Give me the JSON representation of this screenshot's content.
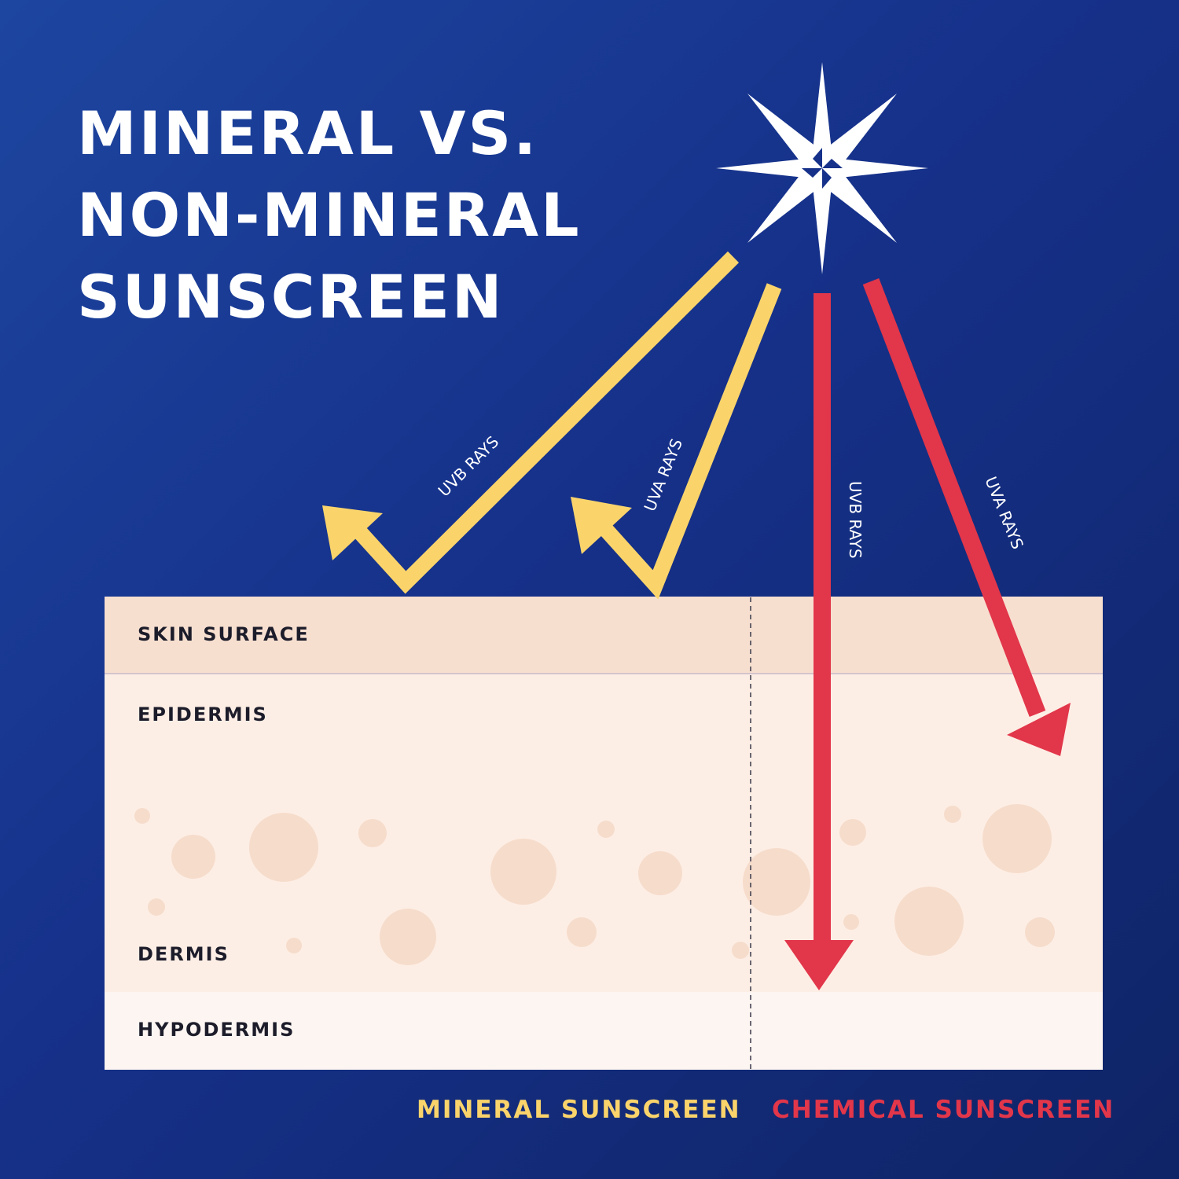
{
  "title": {
    "line1": "MINERAL VS.",
    "line2": "NON-MINERAL",
    "line3": "SUNSCREEN"
  },
  "rays": {
    "mineral_uvb": "UVB RAYS",
    "mineral_uva": "UVA RAYS",
    "chemical_uvb": "UVB RAYS",
    "chemical_uva": "UVA RAYS"
  },
  "layers": {
    "surface": "SKIN SURFACE",
    "epidermis": "EPIDERMIS",
    "dermis": "DERMIS",
    "hypodermis": "HYPODERMIS"
  },
  "legend": {
    "mineral": "MINERAL SUNSCREEN",
    "chemical": "CHEMICAL SUNSCREEN"
  },
  "colors": {
    "background": "#16318a",
    "mineral_arrow": "#fad46b",
    "chemical_arrow": "#e2364a",
    "skin_surface": "#f7dfd0",
    "epidermis": "#fdeee5",
    "hypodermis": "#fdf5f1",
    "cells": "#f6dccb"
  },
  "icons": {
    "sun": "compass-star-icon"
  }
}
